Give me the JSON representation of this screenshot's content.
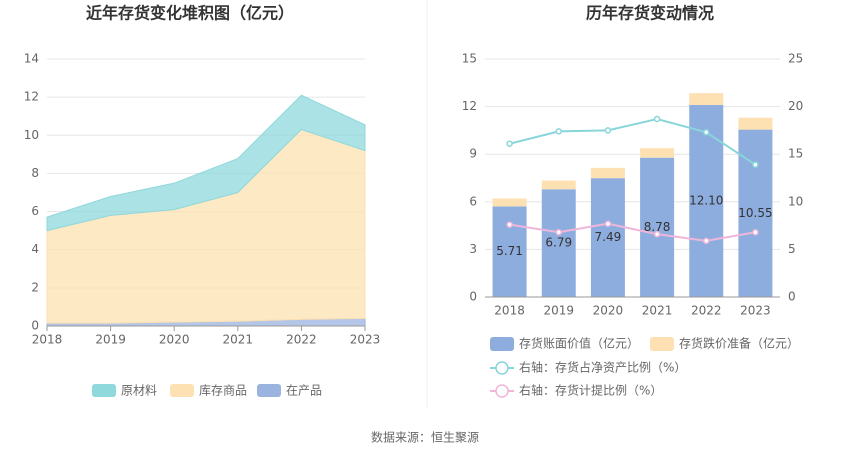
{
  "chart_data": [
    {
      "type": "stacked-area",
      "title": "近年存货变化堆积图（亿元）",
      "x": [
        2018,
        2019,
        2020,
        2021,
        2022,
        2023
      ],
      "xlim": [
        2018,
        2023
      ],
      "xticks": [
        2018,
        2019,
        2020,
        2021,
        2022,
        2023
      ],
      "ylim": [
        0,
        14
      ],
      "yticks": [
        0,
        2,
        4,
        6,
        8,
        10,
        12,
        14
      ],
      "grid": true,
      "series": [
        {
          "name": "原材料",
          "color": "#8fd8dc",
          "values": [
            0.71,
            0.99,
            1.39,
            1.78,
            1.8,
            1.35
          ]
        },
        {
          "name": "库存商品",
          "color": "#fde1b2",
          "values": [
            4.85,
            5.65,
            5.9,
            6.75,
            9.95,
            8.8
          ]
        },
        {
          "name": "在产品",
          "color": "#9ab3df",
          "values": [
            0.15,
            0.15,
            0.2,
            0.25,
            0.35,
            0.4
          ]
        }
      ]
    },
    {
      "type": "bar-line",
      "title": "历年存货变动情况",
      "categories": [
        "2018",
        "2019",
        "2020",
        "2021",
        "2022",
        "2023"
      ],
      "ylim": [
        0,
        15
      ],
      "yticks": [
        0,
        3,
        6,
        9,
        12,
        15
      ],
      "y2lim": [
        0,
        25
      ],
      "y2ticks": [
        0,
        5,
        10,
        15,
        20,
        25
      ],
      "grid": true,
      "series": [
        {
          "name": "存货账面价值（亿元）",
          "color": "#8eaddf",
          "values": [
            5.71,
            6.79,
            7.49,
            8.78,
            12.1,
            10.55
          ],
          "value_labels": [
            "5.71",
            "6.79",
            "7.49",
            "8.78",
            "12.10",
            "10.55"
          ]
        },
        {
          "name": "存货跌价准备（亿元）",
          "color": "#fde1b2",
          "values": [
            0.5,
            0.55,
            0.65,
            0.6,
            0.75,
            0.75
          ]
        },
        {
          "name": "右轴：存货占净资产比例（%）",
          "color": "#88d6da",
          "axis": "y2",
          "values": [
            16.1,
            17.4,
            17.5,
            18.7,
            17.3,
            13.9
          ]
        },
        {
          "name": "右轴：存货计提比例（%）",
          "color": "#efb6da",
          "axis": "y2",
          "values": [
            7.6,
            6.8,
            7.7,
            6.6,
            5.9,
            6.8
          ]
        }
      ]
    }
  ],
  "source": "数据来源：恒生聚源"
}
